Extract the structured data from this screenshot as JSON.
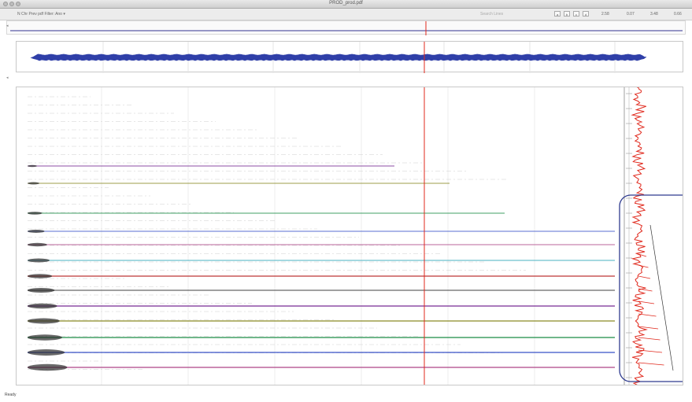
{
  "window": {
    "title": "PROD_prod.pdf"
  },
  "toolbar": {
    "left_text": "N  Chr Prev pdf   Filter: Ano  ▾",
    "search_placeholder": "Search Lines",
    "buttons": [
      "a",
      "b",
      "c",
      "d"
    ],
    "right_readouts": [
      "2.58",
      "0.07",
      "3.48",
      "0.66"
    ]
  },
  "overview": {
    "wave_color": "#2f3fa8",
    "cursor_color": "#e0281c"
  },
  "main": {
    "cursor_color": "#e0281c",
    "trace_colors": [
      "#7a2e96",
      "#8c8c2a",
      "#1f8f4a",
      "#3d55c8",
      "#b04a8a",
      "#2aa3b8",
      "#c03a3a",
      "#6a6a6a"
    ],
    "right_strip_color": "#e0281c",
    "callout_color": "#2f3b8f"
  },
  "status": {
    "text": "Ready"
  }
}
